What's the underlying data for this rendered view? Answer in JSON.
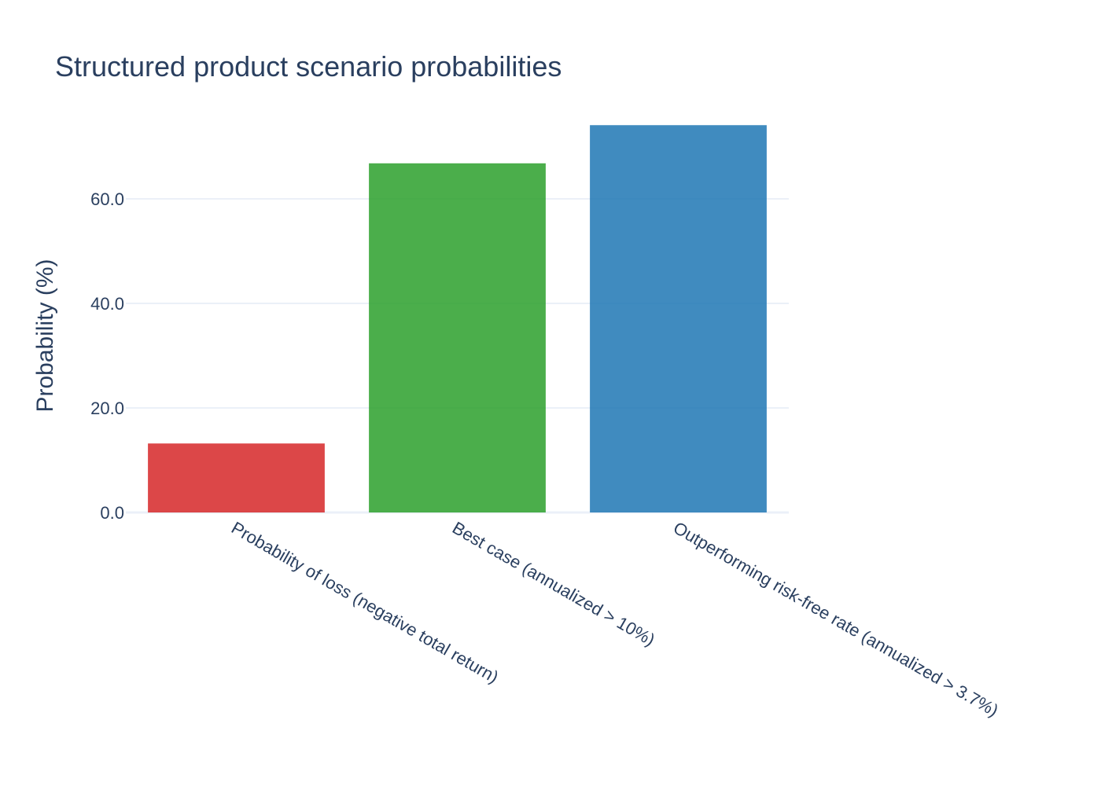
{
  "chart_data": {
    "type": "bar",
    "title": "Structured product scenario probabilities",
    "xlabel": "",
    "ylabel": "Probability (%)",
    "categories": [
      "Probability of loss (negative total return)",
      "Best case (annualized > 10%)",
      "Outperforming risk-free rate (annualized > 3.7%)"
    ],
    "values": [
      13.2,
      66.8,
      74.1
    ],
    "colors": [
      "#d62728",
      "#2ca02c",
      "#1f77b4"
    ],
    "ylim": [
      0,
      80
    ],
    "yticks": [
      0,
      20,
      40,
      60
    ],
    "ytick_labels": [
      "0.0",
      "20.0",
      "40.0",
      "60.0"
    ],
    "grid": true,
    "legend": "none"
  }
}
